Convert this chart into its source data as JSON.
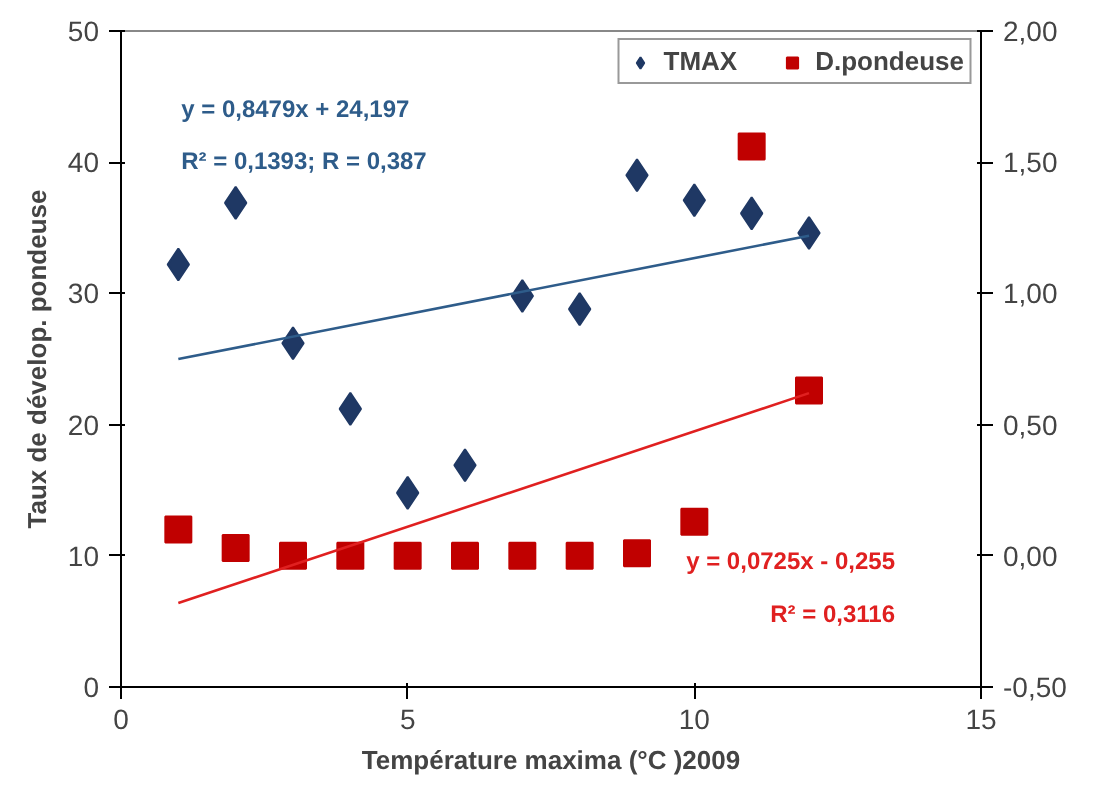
{
  "chart_data": {
    "type": "scatter",
    "xlabel": "Température maxima (°C )2009",
    "ylabel": "Taux de dévelop. pondeuse",
    "xlim": [
      0,
      15
    ],
    "xticks": [
      0,
      5,
      10,
      15
    ],
    "ylim": [
      0,
      50
    ],
    "yticks": [
      0,
      10,
      20,
      30,
      40,
      50
    ],
    "y2lim": [
      -0.5,
      2
    ],
    "y2ticks": [
      {
        "value": -0.5,
        "label": "-0,50"
      },
      {
        "value": 0,
        "label": "0,00"
      },
      {
        "value": 0.5,
        "label": "0,50"
      },
      {
        "value": 1,
        "label": "1,00"
      },
      {
        "value": 1.5,
        "label": "1,50"
      },
      {
        "value": 2,
        "label": "2,00"
      }
    ],
    "grid": false,
    "legend": "top right",
    "series": [
      {
        "name": "TMAX",
        "marker": "diamond",
        "color": "#1f3864",
        "x": [
          1,
          2,
          3,
          4,
          5,
          6,
          7,
          8,
          9,
          10,
          11,
          12
        ],
        "values": [
          32.2,
          36.9,
          26.2,
          21.2,
          14.8,
          16.9,
          29.8,
          28.8,
          39,
          37.1,
          36.1,
          34.6
        ]
      },
      {
        "name": "D.pondeuse",
        "marker": "square",
        "axis": "y2",
        "color": "#c00000",
        "x": [
          1,
          2,
          3,
          4,
          5,
          6,
          7,
          8,
          9,
          10,
          11,
          12
        ],
        "values": [
          0.1,
          0.03,
          0,
          0,
          0,
          0,
          0,
          0,
          0.01,
          0.13,
          1.56,
          0.63
        ]
      },
      {
        "type": "line",
        "color": "#2e5c8a",
        "x": [
          1,
          12
        ],
        "values": [
          25,
          34.4
        ]
      },
      {
        "type": "line",
        "axis": "y2",
        "color": "#e02020",
        "x": [
          1,
          12
        ],
        "values": [
          -0.18,
          0.62
        ]
      }
    ],
    "annotations": [
      "y = 0,8479x + 24,197",
      "R² = 0,1393; R = 0,387",
      "y = 0,0725x - 0,255",
      "R² = 0,3116"
    ]
  }
}
